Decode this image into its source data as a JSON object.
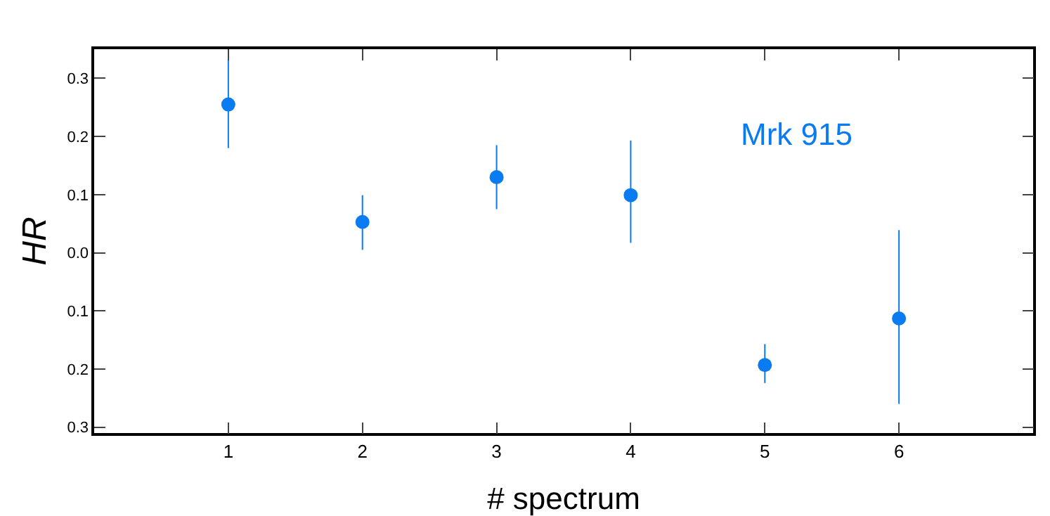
{
  "chart_data": {
    "type": "scatter",
    "xlabel": "# spectrum",
    "ylabel": "HR",
    "marker": "circle",
    "grid": false,
    "x": [
      1,
      2,
      3,
      4,
      5,
      6
    ],
    "series": [
      {
        "color": "#0a7bf0",
        "values": [
          0.255,
          0.053,
          0.13,
          0.099,
          -0.193,
          -0.113
        ],
        "errors": [
          [
            0.18,
            0.333
          ],
          [
            0.005,
            0.099
          ],
          [
            0.075,
            0.185
          ],
          [
            0.017,
            0.193
          ],
          [
            -0.224,
            -0.157
          ],
          [
            -0.26,
            0.039
          ]
        ]
      }
    ],
    "xlim": [
      0,
      7
    ],
    "xticks": [
      1,
      2,
      3,
      4,
      5,
      6
    ],
    "ylim": [
      -0.31,
      0.35
    ],
    "yticks": [
      {
        "value": -0.3,
        "label": "0.3"
      },
      {
        "value": -0.2,
        "label": "0.2"
      },
      {
        "value": -0.1,
        "label": "0.1"
      },
      {
        "value": 0,
        "label": "0.0"
      },
      0.1,
      0.2,
      0.3
    ],
    "annotations": [
      "Mrk 915"
    ]
  }
}
